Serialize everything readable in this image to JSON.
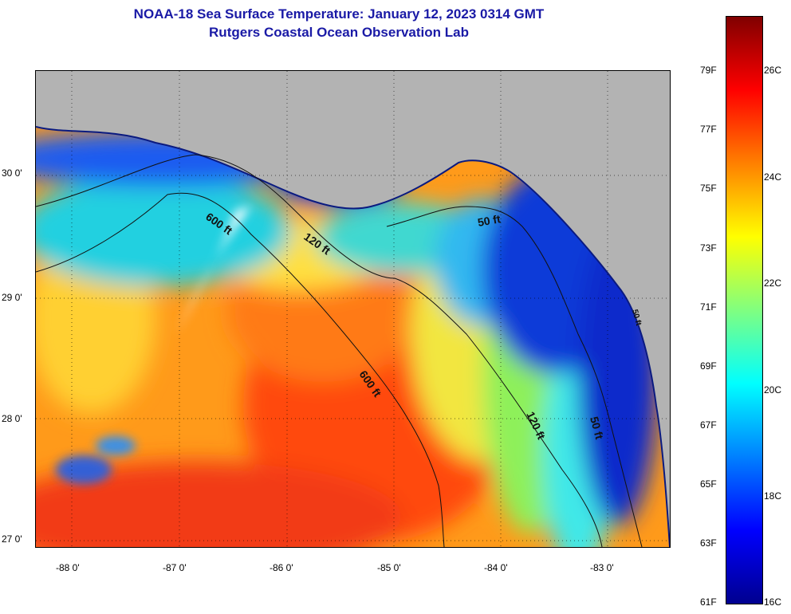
{
  "title": "NOAA-18 Sea Surface Temperature:  January 12, 2023 0314 GMT",
  "subtitle": "Rutgers Coastal Ocean Observation Lab",
  "map": {
    "lat_labels": [
      "30 0'",
      "29 0'",
      "28 0'",
      "27 0'"
    ],
    "lon_labels": [
      "-88 0'",
      "-87 0'",
      "-86 0'",
      "-85 0'",
      "-84 0'",
      "-83 0'"
    ],
    "isobath_labels": [
      "600 ft",
      "120 ft",
      "50 ft",
      "600 ft",
      "120 ft",
      "50 ft",
      "50 ft"
    ],
    "land_color": "#b3b3b3",
    "grid": "dotted"
  },
  "colorbar": {
    "fahrenheit_labels": [
      "79F",
      "77F",
      "75F",
      "73F",
      "71F",
      "69F",
      "67F",
      "65F",
      "63F",
      "61F"
    ],
    "celsius_labels": [
      "26C",
      "24C",
      "22C",
      "20C",
      "18C",
      "16C"
    ],
    "range_c": [
      16,
      27
    ],
    "colors": [
      "#00008f",
      "#0000ff",
      "#0080ff",
      "#00ffff",
      "#80ff80",
      "#ffff00",
      "#ff8000",
      "#ff0000",
      "#800000"
    ]
  }
}
